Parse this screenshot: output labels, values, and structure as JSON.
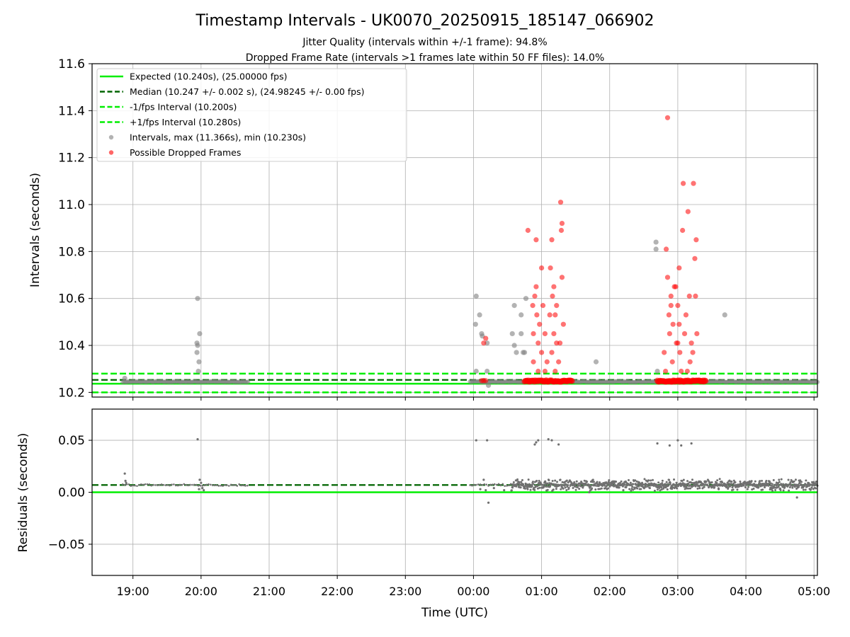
{
  "chart_data": [
    {
      "type": "scatter",
      "panel": "intervals",
      "title": "Timestamp Intervals - UK0070_20250915_185147_066902",
      "subtitle1": "Jitter Quality (intervals within +/-1 frame): 94.8%",
      "subtitle2": "Dropped Frame Rate (intervals >1 frames late within 50 FF files): 14.0%",
      "xlabel": "Time (UTC)",
      "ylabel": "Intervals (seconds)",
      "xlim_hours": [
        -5.6,
        5.05
      ],
      "ylim": [
        10.18,
        11.6
      ],
      "x_ticks": [
        {
          "h": -5,
          "label": "19:00"
        },
        {
          "h": -4,
          "label": "20:00"
        },
        {
          "h": -3,
          "label": "21:00"
        },
        {
          "h": -2,
          "label": "22:00"
        },
        {
          "h": -1,
          "label": "23:00"
        },
        {
          "h": 0,
          "label": "00:00"
        },
        {
          "h": 1,
          "label": "01:00"
        },
        {
          "h": 2,
          "label": "02:00"
        },
        {
          "h": 3,
          "label": "03:00"
        },
        {
          "h": 4,
          "label": "04:00"
        },
        {
          "h": 5,
          "label": "05:00"
        }
      ],
      "y_ticks": [
        "10.2",
        "10.4",
        "10.6",
        "10.8",
        "11.0",
        "11.2",
        "11.4",
        "11.6"
      ],
      "grid": true,
      "legend_position": "top-left",
      "legend": [
        {
          "label": "Expected (10.240s), (25.00000 fps)",
          "style": "solid",
          "color": "#00ee00"
        },
        {
          "label": "Median (10.247 +/- 0.002 s), (24.98245 +/- 0.00 fps)",
          "style": "dashed",
          "color": "#006400"
        },
        {
          "label": "-1/fps Interval (10.200s)",
          "style": "dashed",
          "color": "#00ee00"
        },
        {
          "label": "+1/fps Interval (10.280s)",
          "style": "dashed",
          "color": "#00ee00"
        },
        {
          "label": "Intervals, max (11.366s), min (10.230s)",
          "style": "marker",
          "color": "#808080"
        },
        {
          "label": "Possible Dropped Frames",
          "style": "marker",
          "color": "#ff0000"
        }
      ],
      "reference_lines": {
        "expected": 10.24,
        "median": 10.247,
        "minus_1_fps": 10.2,
        "plus_1_fps": 10.28
      },
      "baseline_segments": [
        [
          -5.15,
          -3.3
        ],
        [
          -0.05,
          5.05
        ]
      ],
      "intervals_gray": [
        [
          -5.12,
          10.26
        ],
        [
          -4.05,
          10.6
        ],
        [
          -4.06,
          10.41
        ],
        [
          -4.05,
          10.4
        ],
        [
          -4.06,
          10.37
        ],
        [
          -4.02,
          10.45
        ],
        [
          -4.03,
          10.33
        ],
        [
          -4.04,
          10.29
        ],
        [
          0.04,
          10.61
        ],
        [
          0.03,
          10.49
        ],
        [
          0.09,
          10.53
        ],
        [
          0.12,
          10.45
        ],
        [
          0.13,
          10.44
        ],
        [
          0.2,
          10.41
        ],
        [
          0.2,
          10.29
        ],
        [
          0.04,
          10.29
        ],
        [
          0.15,
          10.25
        ],
        [
          0.22,
          10.23
        ],
        [
          0.57,
          10.45
        ],
        [
          0.6,
          10.4
        ],
        [
          0.63,
          10.37
        ],
        [
          0.6,
          10.57
        ],
        [
          0.7,
          10.53
        ],
        [
          0.7,
          10.45
        ],
        [
          0.73,
          10.37
        ],
        [
          0.75,
          10.37
        ],
        [
          0.77,
          10.6
        ],
        [
          1.8,
          10.33
        ],
        [
          2.68,
          10.84
        ],
        [
          2.68,
          10.81
        ],
        [
          2.7,
          10.29
        ],
        [
          3.69,
          10.53
        ]
      ],
      "dropped_frames": [
        [
          0.12,
          10.25
        ],
        [
          0.15,
          10.25
        ],
        [
          0.18,
          10.25
        ],
        [
          0.15,
          10.41
        ],
        [
          0.18,
          10.43
        ],
        [
          0.8,
          10.89
        ],
        [
          0.87,
          10.57
        ],
        [
          0.88,
          10.45
        ],
        [
          0.9,
          10.61
        ],
        [
          0.92,
          10.65
        ],
        [
          0.92,
          10.85
        ],
        [
          0.93,
          10.53
        ],
        [
          0.95,
          10.41
        ],
        [
          0.97,
          10.49
        ],
        [
          1.0,
          10.37
        ],
        [
          1.0,
          10.73
        ],
        [
          1.02,
          10.57
        ],
        [
          1.05,
          10.45
        ],
        [
          1.08,
          10.33
        ],
        [
          1.12,
          10.53
        ],
        [
          1.13,
          10.73
        ],
        [
          1.15,
          10.85
        ],
        [
          1.16,
          10.61
        ],
        [
          1.18,
          10.45
        ],
        [
          1.2,
          10.53
        ],
        [
          1.2,
          10.29
        ],
        [
          1.22,
          10.41
        ],
        [
          1.25,
          10.33
        ],
        [
          1.28,
          11.01
        ],
        [
          1.29,
          10.89
        ],
        [
          1.3,
          10.92
        ],
        [
          1.3,
          10.69
        ],
        [
          1.32,
          10.49
        ],
        [
          0.95,
          10.29
        ],
        [
          1.05,
          10.29
        ],
        [
          0.88,
          10.33
        ],
        [
          1.15,
          10.37
        ],
        [
          1.18,
          10.65
        ],
        [
          1.27,
          10.41
        ],
        [
          1.22,
          10.57
        ],
        [
          2.8,
          10.37
        ],
        [
          2.83,
          10.81
        ],
        [
          2.85,
          10.69
        ],
        [
          2.87,
          10.53
        ],
        [
          2.88,
          10.45
        ],
        [
          2.9,
          10.61
        ],
        [
          2.92,
          10.33
        ],
        [
          2.93,
          10.49
        ],
        [
          2.95,
          10.65
        ],
        [
          2.98,
          10.41
        ],
        [
          3.0,
          10.57
        ],
        [
          3.02,
          10.73
        ],
        [
          3.03,
          10.37
        ],
        [
          3.05,
          10.29
        ],
        [
          3.07,
          10.89
        ],
        [
          3.08,
          11.09
        ],
        [
          3.1,
          10.45
        ],
        [
          3.12,
          10.53
        ],
        [
          3.15,
          10.97
        ],
        [
          3.17,
          10.61
        ],
        [
          3.18,
          10.33
        ],
        [
          3.2,
          10.41
        ],
        [
          3.23,
          11.09
        ],
        [
          3.25,
          10.77
        ],
        [
          3.27,
          10.85
        ],
        [
          3.28,
          10.45
        ],
        [
          3.26,
          10.61
        ],
        [
          3.22,
          10.37
        ],
        [
          3.14,
          10.29
        ],
        [
          2.82,
          10.29
        ],
        [
          2.85,
          11.37
        ],
        [
          2.97,
          10.65
        ],
        [
          3.0,
          10.41
        ],
        [
          2.9,
          10.57
        ],
        [
          3.02,
          10.49
        ]
      ],
      "dropped_band_segments": [
        [
          0.75,
          1.45
        ],
        [
          2.7,
          3.42
        ]
      ]
    },
    {
      "type": "scatter",
      "panel": "residuals",
      "xlabel": "Time (UTC)",
      "ylabel": "Residuals (seconds)",
      "xlim_hours": [
        -5.6,
        5.05
      ],
      "ylim": [
        -0.08,
        0.08
      ],
      "y_ticks": [
        "0.05",
        "0.00",
        "−0.05"
      ],
      "grid": true,
      "reference_lines": {
        "expected": 0.0,
        "median": 0.007
      },
      "baseline_segments": [
        [
          -5.15,
          -3.3
        ],
        [
          -0.05,
          5.05
        ]
      ],
      "residual_points": [
        [
          -5.12,
          0.018
        ],
        [
          -5.11,
          0.011
        ],
        [
          -5.1,
          0.009
        ],
        [
          -4.05,
          0.051
        ],
        [
          -4.02,
          0.012
        ],
        [
          -4.0,
          0.009
        ],
        [
          -4.03,
          0.003
        ],
        [
          -3.98,
          0.004
        ],
        [
          -3.96,
          0.002
        ],
        [
          0.04,
          0.05
        ],
        [
          0.2,
          0.05
        ],
        [
          0.22,
          -0.01
        ],
        [
          0.1,
          0.003
        ],
        [
          0.15,
          0.012
        ],
        [
          0.18,
          0.002
        ],
        [
          0.3,
          0.004
        ],
        [
          0.45,
          0.002
        ],
        [
          0.9,
          0.046
        ],
        [
          0.92,
          0.048
        ],
        [
          0.95,
          0.05
        ],
        [
          1.1,
          0.051
        ],
        [
          1.15,
          0.05
        ],
        [
          1.25,
          0.046
        ],
        [
          2.7,
          0.047
        ],
        [
          2.88,
          0.045
        ],
        [
          3.0,
          0.05
        ],
        [
          3.05,
          0.045
        ],
        [
          3.2,
          0.047
        ],
        [
          4.75,
          -0.005
        ],
        [
          1.7,
          0.0
        ],
        [
          2.2,
          0.002
        ],
        [
          3.6,
          0.003
        ]
      ],
      "dense_residual_band": [
        0.55,
        5.05
      ]
    }
  ]
}
